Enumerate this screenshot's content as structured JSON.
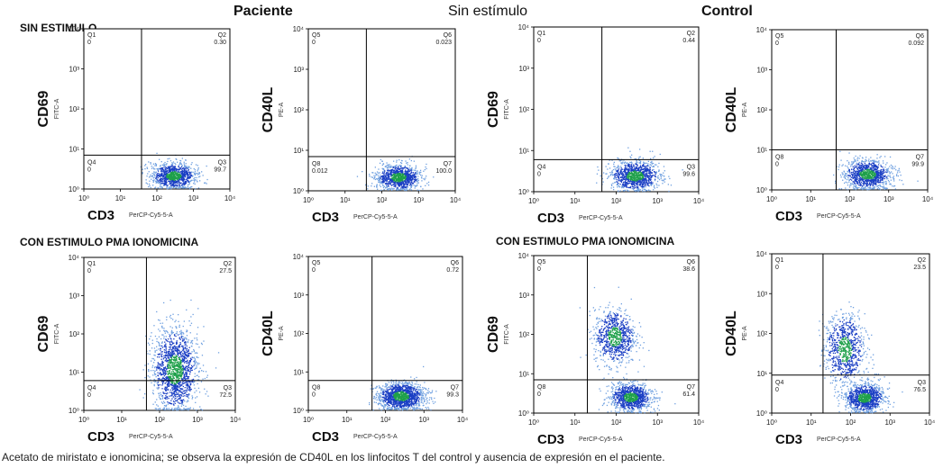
{
  "header": {
    "patient": "Paciente",
    "middle": "Sin estímulo",
    "control": "Control"
  },
  "sections": {
    "top_left": "SIN ESTIMULO",
    "bottom_left": "CON ESTIMULO PMA IONOMICINA",
    "bottom_right": "CON ESTIMULO PMA IONOMICINA"
  },
  "caption": "Acetato de miristato e ionomicina; se observa la expresión de CD40L en los linfocitos T del control y ausencia de expresión en el paciente.",
  "colors": {
    "dense": "#1ea04a",
    "mid": "#1b3fc4",
    "sparse": "#6fa0e0",
    "gate": "#000000"
  },
  "chart_data": [
    {
      "type": "scatter",
      "panel": "paciente-sin-cd69",
      "ylabel": "CD69",
      "ysub": "FITC-A",
      "xlabel": "CD3",
      "xsub": "PerCP-Cy5-5-A",
      "xlim": [
        1,
        10000
      ],
      "ylim": [
        1,
        10000
      ],
      "gate": [
        38,
        7
      ],
      "xticks": [
        "10⁰",
        "10¹",
        "10²",
        "10³",
        "10⁴"
      ],
      "yticks": [
        "10⁰",
        "10¹",
        "10²",
        "10³",
        "10⁴"
      ],
      "quadrants": [
        {
          "name": "Q1",
          "value": "0",
          "pos": "tl"
        },
        {
          "name": "Q2",
          "value": "0.30",
          "pos": "tr"
        },
        {
          "name": "Q3",
          "value": "99.7",
          "pos": "br"
        },
        {
          "name": "Q4",
          "value": "0",
          "pos": "bl"
        }
      ],
      "clusters": [
        {
          "cx": 280,
          "cy": 2.2,
          "sx": 0.3,
          "sy": 0.16,
          "n": 1000
        }
      ]
    },
    {
      "type": "scatter",
      "panel": "paciente-sin-cd40l",
      "ylabel": "CD40L",
      "ysub": "PE-A",
      "xlabel": "CD3",
      "xsub": "PerCP-Cy5-5-A",
      "xlim": [
        1,
        10000
      ],
      "ylim": [
        1,
        10000
      ],
      "gate": [
        38,
        7
      ],
      "xticks": [
        "10⁰",
        "10¹",
        "10²",
        "10³",
        "10⁴"
      ],
      "yticks": [
        "10⁰",
        "10¹",
        "10²",
        "10³",
        "10⁴"
      ],
      "quadrants": [
        {
          "name": "Q5",
          "value": "0",
          "pos": "tl"
        },
        {
          "name": "Q6",
          "value": "0.023",
          "pos": "tr"
        },
        {
          "name": "Q7",
          "value": "100.0",
          "pos": "br"
        },
        {
          "name": "Q8",
          "value": "0.012",
          "pos": "bl"
        }
      ],
      "clusters": [
        {
          "cx": 280,
          "cy": 2.2,
          "sx": 0.3,
          "sy": 0.16,
          "n": 1000
        }
      ]
    },
    {
      "type": "scatter",
      "panel": "control-sin-cd69",
      "ylabel": "CD69",
      "ysub": "FITC-A",
      "xlabel": "CD3",
      "xsub": "PerCP-Cy5-5-A",
      "xlim": [
        1,
        10000
      ],
      "ylim": [
        1,
        10000
      ],
      "gate": [
        45,
        6
      ],
      "xticks": [
        "10⁰",
        "10¹",
        "10²",
        "10³",
        "10⁴"
      ],
      "yticks": [
        "10⁰",
        "10¹",
        "10²",
        "10³",
        "10⁴"
      ],
      "quadrants": [
        {
          "name": "Q1",
          "value": "0",
          "pos": "tl"
        },
        {
          "name": "Q2",
          "value": "0.44",
          "pos": "tr"
        },
        {
          "name": "Q3",
          "value": "99.6",
          "pos": "br"
        },
        {
          "name": "Q4",
          "value": "0",
          "pos": "bl"
        }
      ],
      "clusters": [
        {
          "cx": 280,
          "cy": 2.5,
          "sx": 0.3,
          "sy": 0.18,
          "n": 1000
        }
      ]
    },
    {
      "type": "scatter",
      "panel": "control-sin-cd40l",
      "ylabel": "CD40L",
      "ysub": "PE-A",
      "xlabel": "CD3",
      "xsub": "PerCP-Cy5-5-A",
      "xlim": [
        1,
        10000
      ],
      "ylim": [
        1,
        10000
      ],
      "gate": [
        45,
        10
      ],
      "xticks": [
        "10⁰",
        "10¹",
        "10²",
        "10³",
        "10⁴"
      ],
      "yticks": [
        "10⁰",
        "10¹",
        "10²",
        "10³",
        "10⁴"
      ],
      "quadrants": [
        {
          "name": "Q5",
          "value": "0",
          "pos": "tl"
        },
        {
          "name": "Q6",
          "value": "0.092",
          "pos": "tr"
        },
        {
          "name": "Q7",
          "value": "99.9",
          "pos": "br"
        },
        {
          "name": "Q8",
          "value": "0",
          "pos": "bl"
        }
      ],
      "clusters": [
        {
          "cx": 280,
          "cy": 2.5,
          "sx": 0.3,
          "sy": 0.18,
          "n": 1000
        }
      ]
    },
    {
      "type": "scatter",
      "panel": "paciente-con-cd69",
      "ylabel": "CD69",
      "ysub": "FITC-A",
      "xlabel": "CD3",
      "xsub": "PerCP-Cy5-5-A",
      "xlim": [
        1,
        10000
      ],
      "ylim": [
        1,
        10000
      ],
      "gate": [
        45,
        6
      ],
      "xticks": [
        "10⁰",
        "10¹",
        "10²",
        "10³",
        "10⁴"
      ],
      "yticks": [
        "10⁰",
        "10¹",
        "10²",
        "10³",
        "10⁴"
      ],
      "quadrants": [
        {
          "name": "Q1",
          "value": "0",
          "pos": "tl"
        },
        {
          "name": "Q2",
          "value": "27.5",
          "pos": "tr"
        },
        {
          "name": "Q3",
          "value": "72.5",
          "pos": "br"
        },
        {
          "name": "Q4",
          "value": "0",
          "pos": "bl"
        }
      ],
      "clusters": [
        {
          "cx": 250,
          "cy": 12,
          "sx": 0.3,
          "sy": 0.55,
          "n": 1500
        }
      ]
    },
    {
      "type": "scatter",
      "panel": "paciente-con-cd40l",
      "ylabel": "CD40L",
      "ysub": "PE-A",
      "xlabel": "CD3",
      "xsub": "PerCP-Cy5-5-A",
      "xlim": [
        1,
        10000
      ],
      "ylim": [
        1,
        10000
      ],
      "gate": [
        45,
        6
      ],
      "xticks": [
        "10⁰",
        "10¹",
        "10²",
        "10³",
        "10⁴"
      ],
      "yticks": [
        "10⁰",
        "10¹",
        "10²",
        "10³",
        "10⁴"
      ],
      "quadrants": [
        {
          "name": "Q5",
          "value": "0",
          "pos": "tl"
        },
        {
          "name": "Q6",
          "value": "0.72",
          "pos": "tr"
        },
        {
          "name": "Q7",
          "value": "99.3",
          "pos": "br"
        },
        {
          "name": "Q8",
          "value": "0",
          "pos": "bl"
        }
      ],
      "clusters": [
        {
          "cx": 250,
          "cy": 2.4,
          "sx": 0.3,
          "sy": 0.18,
          "n": 1300
        }
      ]
    },
    {
      "type": "scatter",
      "panel": "control-con-cd69",
      "ylabel": "CD69",
      "ysub": "FITC-A",
      "xlabel": "CD3",
      "xsub": "PerCP-Cy5-5-A",
      "xlim": [
        1,
        10000
      ],
      "ylim": [
        1,
        10000
      ],
      "gate": [
        20,
        7
      ],
      "xticks": [
        "10⁰",
        "10¹",
        "10²",
        "10³",
        "10⁴"
      ],
      "yticks": [
        "10⁰",
        "10¹",
        "10²",
        "10³",
        "10⁴"
      ],
      "quadrants": [
        {
          "name": "Q5",
          "value": "0",
          "pos": "tl"
        },
        {
          "name": "Q6",
          "value": "38.6",
          "pos": "tr"
        },
        {
          "name": "Q7",
          "value": "61.4",
          "pos": "br"
        },
        {
          "name": "Q8",
          "value": "0",
          "pos": "bl"
        }
      ],
      "clusters": [
        {
          "cx": 90,
          "cy": 90,
          "sx": 0.25,
          "sy": 0.35,
          "n": 800
        },
        {
          "cx": 220,
          "cy": 2.6,
          "sx": 0.25,
          "sy": 0.18,
          "n": 1000
        }
      ]
    },
    {
      "type": "scatter",
      "panel": "control-con-cd40l",
      "ylabel": "CD40L",
      "ysub": "PE-A",
      "xlabel": "CD3",
      "xsub": "PerCP-Cy5-5-A",
      "xlim": [
        1,
        10000
      ],
      "ylim": [
        1,
        10000
      ],
      "gate": [
        20,
        9
      ],
      "xticks": [
        "10⁰",
        "10¹",
        "10²",
        "10³",
        "10⁴"
      ],
      "yticks": [
        "10⁰",
        "10¹",
        "10²",
        "10³",
        "10⁴"
      ],
      "quadrants": [
        {
          "name": "Q1",
          "value": "0",
          "pos": "tl"
        },
        {
          "name": "Q2",
          "value": "23.5",
          "pos": "tr"
        },
        {
          "name": "Q3",
          "value": "76.5",
          "pos": "br"
        },
        {
          "name": "Q4",
          "value": "0",
          "pos": "bl"
        }
      ],
      "clusters": [
        {
          "cx": 70,
          "cy": 40,
          "sx": 0.25,
          "sy": 0.45,
          "n": 800
        },
        {
          "cx": 220,
          "cy": 2.5,
          "sx": 0.25,
          "sy": 0.18,
          "n": 1000
        }
      ]
    }
  ]
}
